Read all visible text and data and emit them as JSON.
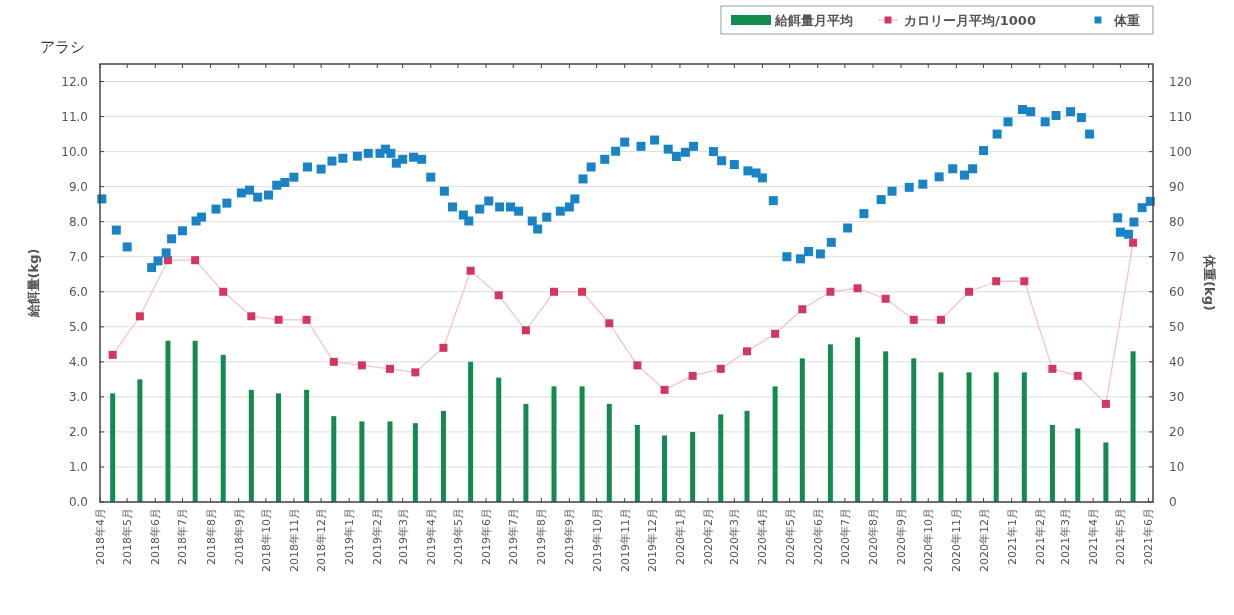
{
  "chart_data": {
    "type": "bar",
    "title": "アラシ",
    "ylabel": "給餌量(kg)",
    "y2label": "体重(kg)",
    "legend": "top right",
    "grid": "y",
    "x": [
      "2018-04-15",
      "2018-05-15",
      "2018-06-15",
      "2018-07-15",
      "2018-08-15",
      "2018-09-15",
      "2018-10-15",
      "2018-11-15",
      "2018-12-15",
      "2019-01-15",
      "2019-02-15",
      "2019-03-15",
      "2019-04-15",
      "2019-05-15",
      "2019-06-15",
      "2019-07-15",
      "2019-08-15",
      "2019-09-15",
      "2019-10-15",
      "2019-11-15",
      "2019-12-15",
      "2020-01-15",
      "2020-02-15",
      "2020-03-15",
      "2020-04-15",
      "2020-05-15",
      "2020-06-15",
      "2020-07-15",
      "2020-08-15",
      "2020-09-15",
      "2020-10-15",
      "2020-11-15",
      "2020-12-15",
      "2021-01-15",
      "2021-02-15",
      "2021-03-15",
      "2021-04-15",
      "2021-05-15"
    ],
    "xlim": [
      "2018-04-01",
      "2021-06-06"
    ],
    "xticks": [
      {
        "value": "2018-04-01",
        "label": "2018年4月"
      },
      {
        "value": "2018-05-01",
        "label": "2018年5月"
      },
      {
        "value": "2018-06-01",
        "label": "2018年6月"
      },
      {
        "value": "2018-07-01",
        "label": "2018年7月"
      },
      {
        "value": "2018-08-01",
        "label": "2018年8月"
      },
      {
        "value": "2018-09-01",
        "label": "2018年9月"
      },
      {
        "value": "2018-10-01",
        "label": "2018年10月"
      },
      {
        "value": "2018-11-01",
        "label": "2018年11月"
      },
      {
        "value": "2018-12-01",
        "label": "2018年12月"
      },
      {
        "value": "2019-01-01",
        "label": "2019年1月"
      },
      {
        "value": "2019-02-01",
        "label": "2019年2月"
      },
      {
        "value": "2019-03-01",
        "label": "2019年3月"
      },
      {
        "value": "2019-04-01",
        "label": "2019年4月"
      },
      {
        "value": "2019-05-01",
        "label": "2019年5月"
      },
      {
        "value": "2019-06-01",
        "label": "2019年6月"
      },
      {
        "value": "2019-07-01",
        "label": "2019年7月"
      },
      {
        "value": "2019-08-01",
        "label": "2019年8月"
      },
      {
        "value": "2019-09-01",
        "label": "2019年9月"
      },
      {
        "value": "2019-10-01",
        "label": "2019年10月"
      },
      {
        "value": "2019-11-01",
        "label": "2019年11月"
      },
      {
        "value": "2019-12-01",
        "label": "2019年12月"
      },
      {
        "value": "2020-01-01",
        "label": "2020年1月"
      },
      {
        "value": "2020-02-01",
        "label": "2020年2月"
      },
      {
        "value": "2020-03-01",
        "label": "2020年3月"
      },
      {
        "value": "2020-04-01",
        "label": "2020年4月"
      },
      {
        "value": "2020-05-01",
        "label": "2020年5月"
      },
      {
        "value": "2020-06-01",
        "label": "2020年6月"
      },
      {
        "value": "2020-07-01",
        "label": "2020年7月"
      },
      {
        "value": "2020-08-01",
        "label": "2020年8月"
      },
      {
        "value": "2020-09-01",
        "label": "2020年9月"
      },
      {
        "value": "2020-10-01",
        "label": "2020年10月"
      },
      {
        "value": "2020-11-01",
        "label": "2020年11月"
      },
      {
        "value": "2020-12-01",
        "label": "2020年12月"
      },
      {
        "value": "2021-01-01",
        "label": "2021年1月"
      },
      {
        "value": "2021-02-01",
        "label": "2021年2月"
      },
      {
        "value": "2021-03-01",
        "label": "2021年3月"
      },
      {
        "value": "2021-04-01",
        "label": "2021年4月"
      },
      {
        "value": "2021-05-01",
        "label": "2021年5月"
      },
      {
        "value": "2021-06-01",
        "label": "2021年6月"
      }
    ],
    "ylim": [
      0,
      12.5
    ],
    "yticks": [
      {
        "value": 0,
        "label": "0.0"
      },
      {
        "value": 1,
        "label": "1.0"
      },
      {
        "value": 2,
        "label": "2.0"
      },
      {
        "value": 3,
        "label": "3.0"
      },
      {
        "value": 4,
        "label": "4.0"
      },
      {
        "value": 5,
        "label": "5.0"
      },
      {
        "value": 6,
        "label": "6.0"
      },
      {
        "value": 7,
        "label": "7.0"
      },
      {
        "value": 8,
        "label": "8.0"
      },
      {
        "value": 9,
        "label": "9.0"
      },
      {
        "value": 10,
        "label": "10.0"
      },
      {
        "value": 11,
        "label": "11.0"
      },
      {
        "value": 12,
        "label": "12.0"
      }
    ],
    "y2lim": [
      0,
      125
    ],
    "y2ticks": [
      0,
      10,
      20,
      30,
      40,
      50,
      60,
      70,
      80,
      90,
      100,
      110,
      120
    ],
    "series": [
      {
        "name": "給餌量月平均",
        "color": "#138a4e",
        "values": [
          3.1,
          3.5,
          4.6,
          4.6,
          4.2,
          3.2,
          3.1,
          3.2,
          2.45,
          2.3,
          2.3,
          2.25,
          2.6,
          4.0,
          3.55,
          2.8,
          3.3,
          3.3,
          2.8,
          2.2,
          1.9,
          2.0,
          2.5,
          2.6,
          3.3,
          4.1,
          4.5,
          4.7,
          4.3,
          4.1,
          3.7,
          3.7,
          3.7,
          3.7,
          2.2,
          2.1,
          1.7,
          4.3
        ]
      },
      {
        "name": "カロリー月平均/1000",
        "type": "line",
        "marker": "square",
        "color": "#d2385e",
        "values": [
          4.2,
          5.3,
          6.9,
          6.9,
          6.0,
          5.3,
          5.2,
          5.2,
          4.0,
          3.9,
          3.8,
          3.7,
          4.4,
          6.6,
          5.9,
          4.9,
          6.0,
          6.0,
          5.1,
          3.9,
          3.2,
          3.6,
          3.8,
          4.3,
          4.8,
          5.5,
          6.0,
          6.1,
          5.8,
          5.2,
          5.2,
          6.0,
          6.3,
          6.3,
          3.8,
          3.6,
          2.8,
          7.4
        ]
      },
      {
        "name": "体重",
        "type": "scatter",
        "marker": "square",
        "axis": "y2",
        "color": "#1a83c6",
        "x": [
          "2018-04-03",
          "2018-04-19",
          "2018-05-01",
          "2018-05-28",
          "2018-06-04",
          "2018-06-13",
          "2018-06-19",
          "2018-07-01",
          "2018-07-16",
          "2018-07-22",
          "2018-08-07",
          "2018-08-19",
          "2018-09-04",
          "2018-09-13",
          "2018-09-22",
          "2018-10-04",
          "2018-10-13",
          "2018-10-22",
          "2018-11-01",
          "2018-11-16",
          "2018-12-01",
          "2018-12-13",
          "2018-12-25",
          "2019-01-10",
          "2019-01-22",
          "2019-02-04",
          "2019-02-10",
          "2019-02-16",
          "2019-02-22",
          "2019-03-01",
          "2019-03-13",
          "2019-03-22",
          "2019-04-01",
          "2019-04-16",
          "2019-04-25",
          "2019-05-07",
          "2019-05-13",
          "2019-05-25",
          "2019-06-04",
          "2019-06-16",
          "2019-06-28",
          "2019-07-07",
          "2019-07-22",
          "2019-07-28",
          "2019-08-07",
          "2019-08-22",
          "2019-09-01",
          "2019-09-07",
          "2019-09-16",
          "2019-09-25",
          "2019-10-10",
          "2019-10-22",
          "2019-11-01",
          "2019-11-19",
          "2019-12-04",
          "2019-12-19",
          "2019-12-28",
          "2020-01-07",
          "2020-01-16",
          "2020-02-07",
          "2020-02-16",
          "2020-03-01",
          "2020-03-16",
          "2020-03-25",
          "2020-04-01",
          "2020-04-13",
          "2020-04-28",
          "2020-05-13",
          "2020-05-22",
          "2020-06-04",
          "2020-06-16",
          "2020-07-04",
          "2020-07-22",
          "2020-08-10",
          "2020-08-22",
          "2020-09-10",
          "2020-09-25",
          "2020-10-13",
          "2020-10-28",
          "2020-11-10",
          "2020-11-19",
          "2020-12-01",
          "2020-12-16",
          "2020-12-28",
          "2021-01-13",
          "2021-01-22",
          "2021-02-07",
          "2021-02-19",
          "2021-03-07",
          "2021-03-19",
          "2021-03-28",
          "2021-04-28",
          "2021-05-01",
          "2021-05-10",
          "2021-05-16",
          "2021-05-25",
          "2021-06-03"
        ],
        "values": [
          86.5,
          77.6,
          72.8,
          66.9,
          68.8,
          71.1,
          75.1,
          77.4,
          80.2,
          81.3,
          83.6,
          85.3,
          88.2,
          89.0,
          87.0,
          87.6,
          90.4,
          91.2,
          92.7,
          95.6,
          95.0,
          97.3,
          98.1,
          98.7,
          99.5,
          99.5,
          100.7,
          99.5,
          96.7,
          97.8,
          98.4,
          97.8,
          92.7,
          88.7,
          84.2,
          81.9,
          80.2,
          83.6,
          85.9,
          84.2,
          84.2,
          83.0,
          80.2,
          77.9,
          81.3,
          83.0,
          84.2,
          86.5,
          92.2,
          95.6,
          97.8,
          100.1,
          102.7,
          101.5,
          103.3,
          100.7,
          98.6,
          99.8,
          101.5,
          100.0,
          97.4,
          96.3,
          94.5,
          93.9,
          92.5,
          86.0,
          70.0,
          69.4,
          71.5,
          70.8,
          74.1,
          78.2,
          82.3,
          86.3,
          88.7,
          89.8,
          90.7,
          92.8,
          95.1,
          93.3,
          95.1,
          100.3,
          105.0,
          108.5,
          112.0,
          111.4,
          108.5,
          110.3,
          111.4,
          109.7,
          105.0,
          81.1,
          77.0,
          76.4,
          79.9,
          84.0,
          85.8
        ]
      }
    ]
  }
}
